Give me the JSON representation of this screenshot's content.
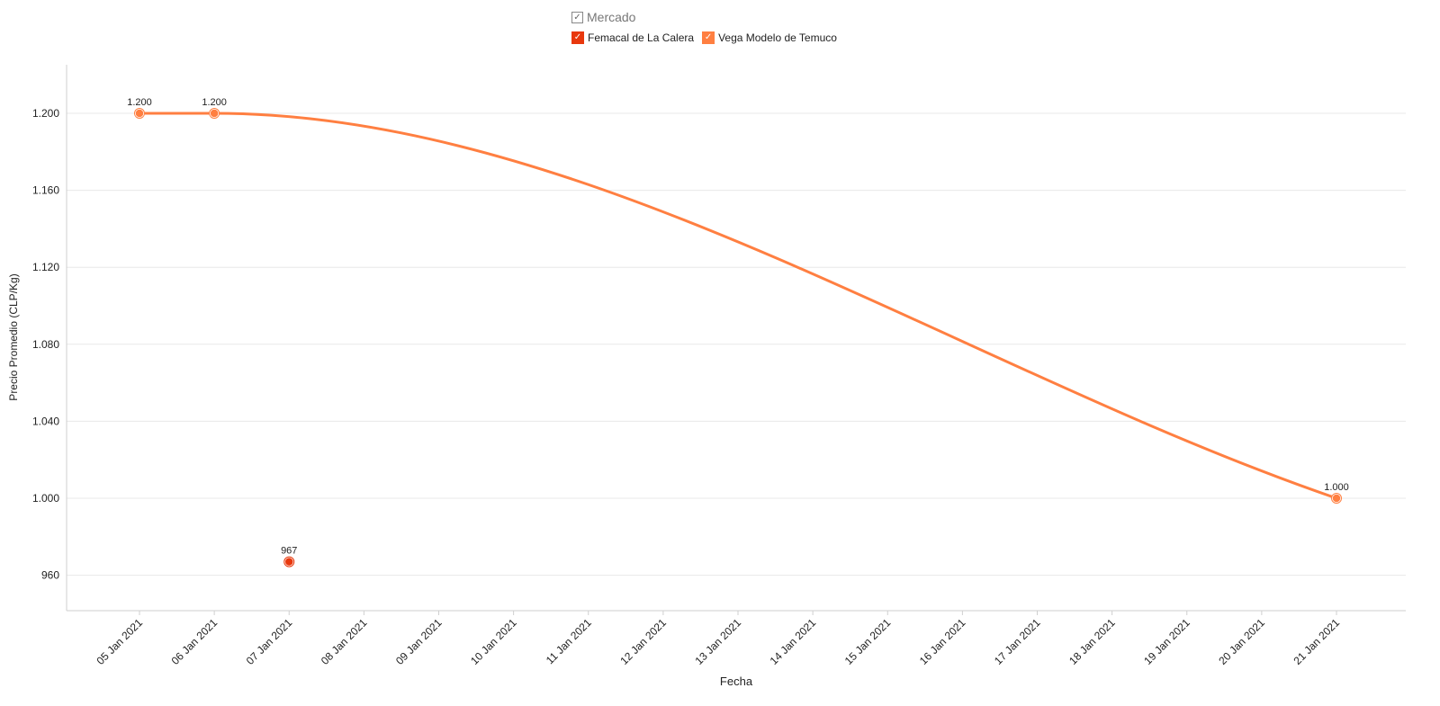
{
  "legend": {
    "title": "Mercado",
    "items": [
      {
        "label": "Femacal de La Calera",
        "color": "#e8380d"
      },
      {
        "label": "Vega Modelo de Temuco",
        "color": "#ff7f41"
      }
    ]
  },
  "chart_data": {
    "type": "line",
    "xlabel": "Fecha",
    "ylabel": "Precio Promedio (CLP/Kg)",
    "categories": [
      "05 Jan 2021",
      "06 Jan 2021",
      "07 Jan 2021",
      "08 Jan 2021",
      "09 Jan 2021",
      "10 Jan 2021",
      "11 Jan 2021",
      "12 Jan 2021",
      "13 Jan 2021",
      "14 Jan 2021",
      "15 Jan 2021",
      "16 Jan 2021",
      "17 Jan 2021",
      "18 Jan 2021",
      "19 Jan 2021",
      "20 Jan 2021",
      "21 Jan 2021"
    ],
    "ylim": [
      943,
      1225
    ],
    "yticks": [
      960,
      1000,
      1040,
      1080,
      1120,
      1160,
      1200
    ],
    "ytick_labels": [
      "960",
      "1.000",
      "1.040",
      "1.080",
      "1.120",
      "1.160",
      "1.200"
    ],
    "grid": true,
    "legend_position": "top-center",
    "series": [
      {
        "name": "Femacal de La Calera",
        "color": "#e8380d",
        "points": [
          {
            "x": "07 Jan 2021",
            "y": 967,
            "label": "967"
          }
        ]
      },
      {
        "name": "Vega Modelo de Temuco",
        "color": "#ff7f41",
        "points": [
          {
            "x": "05 Jan 2021",
            "y": 1200,
            "label": "1.200"
          },
          {
            "x": "06 Jan 2021",
            "y": 1200,
            "label": "1.200"
          },
          {
            "x": "21 Jan 2021",
            "y": 1000,
            "label": "1.000"
          }
        ]
      }
    ]
  }
}
